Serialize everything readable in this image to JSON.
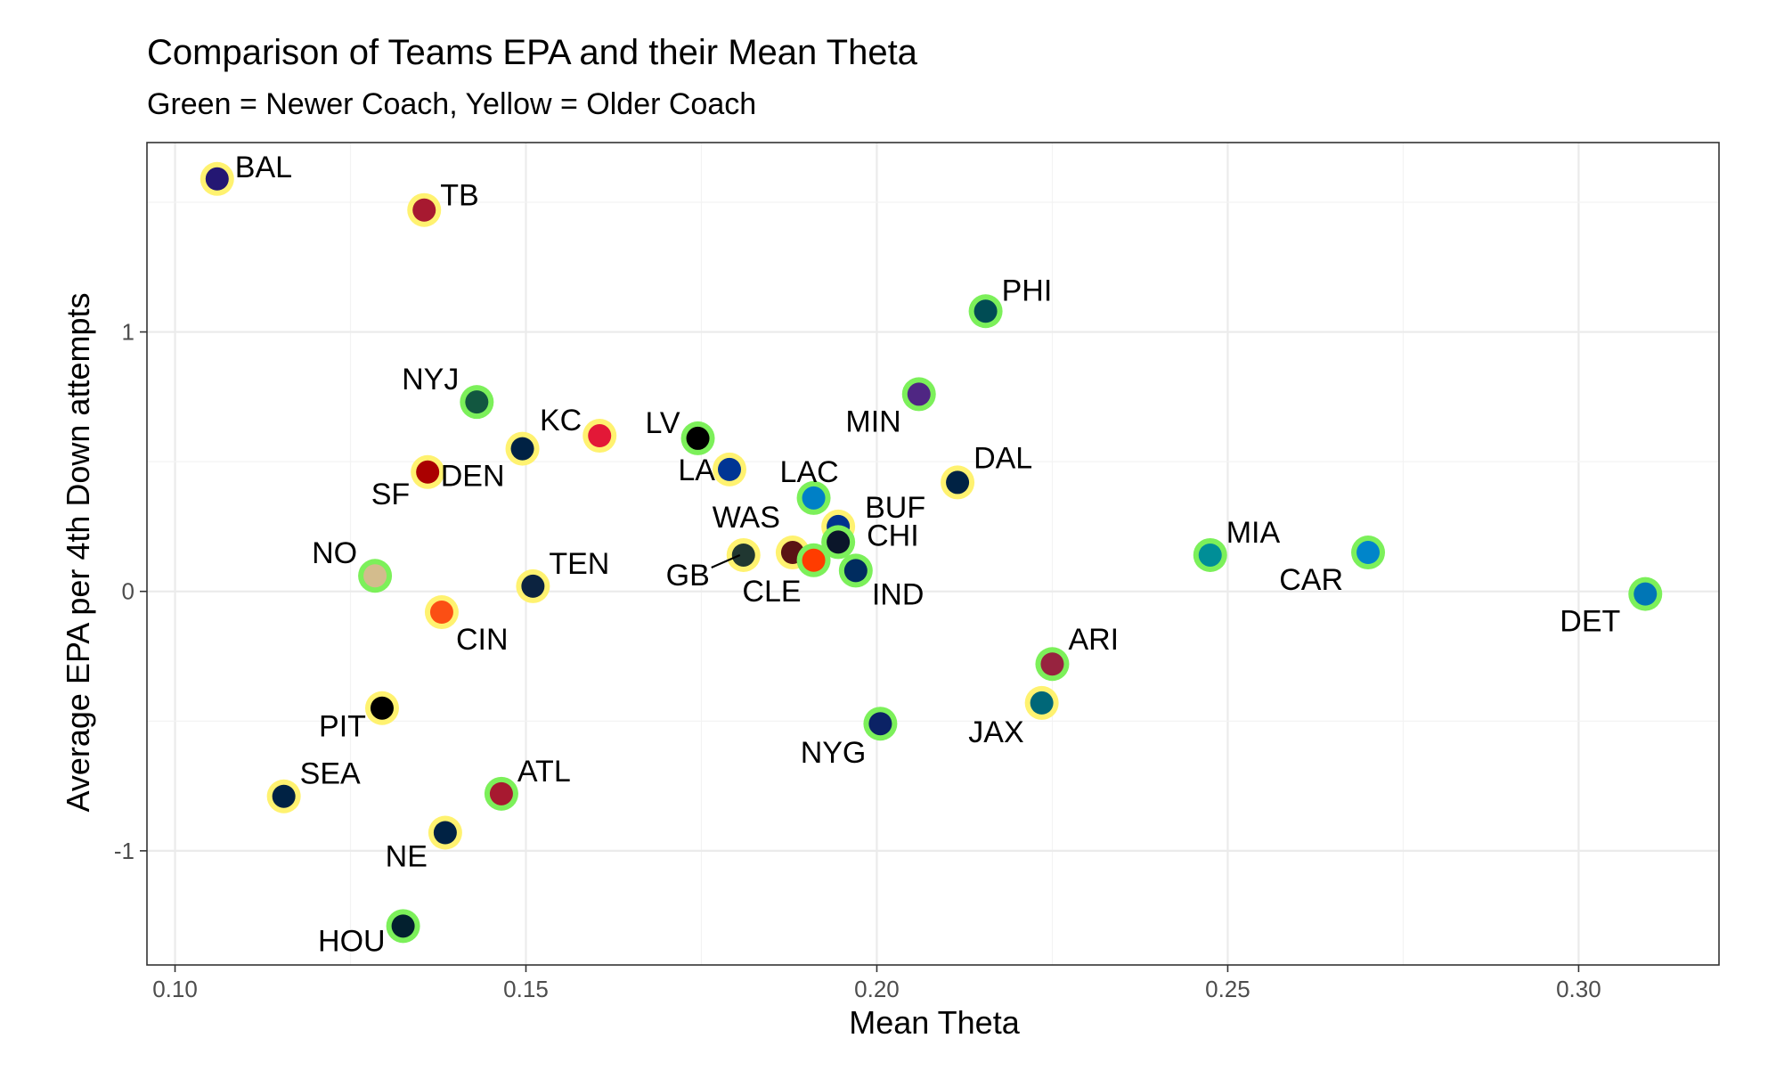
{
  "chart_data": {
    "type": "scatter",
    "title": "Comparison of Teams EPA and their Mean Theta",
    "subtitle": "Green = Newer Coach, Yellow = Older Coach",
    "xlabel": "Mean Theta",
    "ylabel": "Average EPA per 4th Down attempts",
    "xlim": [
      0.096,
      0.32
    ],
    "ylim": [
      -1.44,
      1.73
    ],
    "x_ticks": [
      0.1,
      0.15,
      0.2,
      0.25,
      0.3
    ],
    "x_tick_labels": [
      "0.10",
      "0.15",
      "0.20",
      "0.25",
      "0.30"
    ],
    "y_ticks": [
      -1,
      0,
      1
    ],
    "y_tick_labels": [
      "-1",
      "0",
      "1"
    ],
    "grid": true,
    "legend": "none",
    "outline_colors": {
      "newer_coach": "#7cf05a",
      "older_coach": "#fff270"
    },
    "points": [
      {
        "team": "BAL",
        "x": 0.106,
        "y": 1.59,
        "coach": "older_coach",
        "fill": "#241773"
      },
      {
        "team": "TB",
        "x": 0.1355,
        "y": 1.47,
        "coach": "older_coach",
        "fill": "#a71930"
      },
      {
        "team": "PHI",
        "x": 0.2155,
        "y": 1.08,
        "coach": "newer_coach",
        "fill": "#004c54"
      },
      {
        "team": "NYJ",
        "x": 0.143,
        "y": 0.73,
        "coach": "newer_coach",
        "fill": "#125740"
      },
      {
        "team": "MIN",
        "x": 0.206,
        "y": 0.76,
        "coach": "newer_coach",
        "fill": "#4f2683"
      },
      {
        "team": "KC",
        "x": 0.1605,
        "y": 0.6,
        "coach": "older_coach",
        "fill": "#e31837"
      },
      {
        "team": "LV",
        "x": 0.1745,
        "y": 0.59,
        "coach": "newer_coach",
        "fill": "#000000"
      },
      {
        "team": "DEN",
        "x": 0.1495,
        "y": 0.55,
        "coach": "older_coach",
        "fill": "#002244"
      },
      {
        "team": "SF",
        "x": 0.136,
        "y": 0.46,
        "coach": "older_coach",
        "fill": "#aa0000"
      },
      {
        "team": "LA",
        "x": 0.179,
        "y": 0.47,
        "coach": "older_coach",
        "fill": "#003594"
      },
      {
        "team": "DAL",
        "x": 0.2115,
        "y": 0.42,
        "coach": "older_coach",
        "fill": "#002244"
      },
      {
        "team": "LAC",
        "x": 0.191,
        "y": 0.36,
        "coach": "newer_coach",
        "fill": "#0080c6"
      },
      {
        "team": "BUF",
        "x": 0.1945,
        "y": 0.25,
        "coach": "older_coach",
        "fill": "#00338d"
      },
      {
        "team": "WAS",
        "x": 0.188,
        "y": 0.15,
        "coach": "older_coach",
        "fill": "#5a1414"
      },
      {
        "team": "GB",
        "x": 0.181,
        "y": 0.14,
        "coach": "older_coach",
        "fill": "#203731"
      },
      {
        "team": "CLE",
        "x": 0.191,
        "y": 0.12,
        "coach": "newer_coach",
        "fill": "#ff3c00"
      },
      {
        "team": "CHI",
        "x": 0.1945,
        "y": 0.19,
        "coach": "newer_coach",
        "fill": "#0b162a"
      },
      {
        "team": "IND",
        "x": 0.197,
        "y": 0.08,
        "coach": "newer_coach",
        "fill": "#002c5f"
      },
      {
        "team": "MIA",
        "x": 0.2475,
        "y": 0.14,
        "coach": "newer_coach",
        "fill": "#008e97"
      },
      {
        "team": "CAR",
        "x": 0.27,
        "y": 0.15,
        "coach": "newer_coach",
        "fill": "#0085ca"
      },
      {
        "team": "DET",
        "x": 0.3095,
        "y": -0.01,
        "coach": "newer_coach",
        "fill": "#0076b6"
      },
      {
        "team": "NO",
        "x": 0.1285,
        "y": 0.06,
        "coach": "newer_coach",
        "fill": "#d3bc8d"
      },
      {
        "team": "TEN",
        "x": 0.151,
        "y": 0.02,
        "coach": "older_coach",
        "fill": "#0c2340"
      },
      {
        "team": "CIN",
        "x": 0.138,
        "y": -0.08,
        "coach": "older_coach",
        "fill": "#fb4f14"
      },
      {
        "team": "ARI",
        "x": 0.225,
        "y": -0.28,
        "coach": "newer_coach",
        "fill": "#97233f"
      },
      {
        "team": "JAX",
        "x": 0.2235,
        "y": -0.43,
        "coach": "older_coach",
        "fill": "#006778"
      },
      {
        "team": "PIT",
        "x": 0.1295,
        "y": -0.45,
        "coach": "older_coach",
        "fill": "#000000"
      },
      {
        "team": "NYG",
        "x": 0.2005,
        "y": -0.51,
        "coach": "newer_coach",
        "fill": "#0b2265"
      },
      {
        "team": "SEA",
        "x": 0.1155,
        "y": -0.79,
        "coach": "older_coach",
        "fill": "#002244"
      },
      {
        "team": "ATL",
        "x": 0.1465,
        "y": -0.78,
        "coach": "newer_coach",
        "fill": "#a71930"
      },
      {
        "team": "NE",
        "x": 0.1385,
        "y": -0.93,
        "coach": "older_coach",
        "fill": "#002244"
      },
      {
        "team": "HOU",
        "x": 0.1325,
        "y": -1.29,
        "coach": "newer_coach",
        "fill": "#03202f"
      }
    ]
  }
}
